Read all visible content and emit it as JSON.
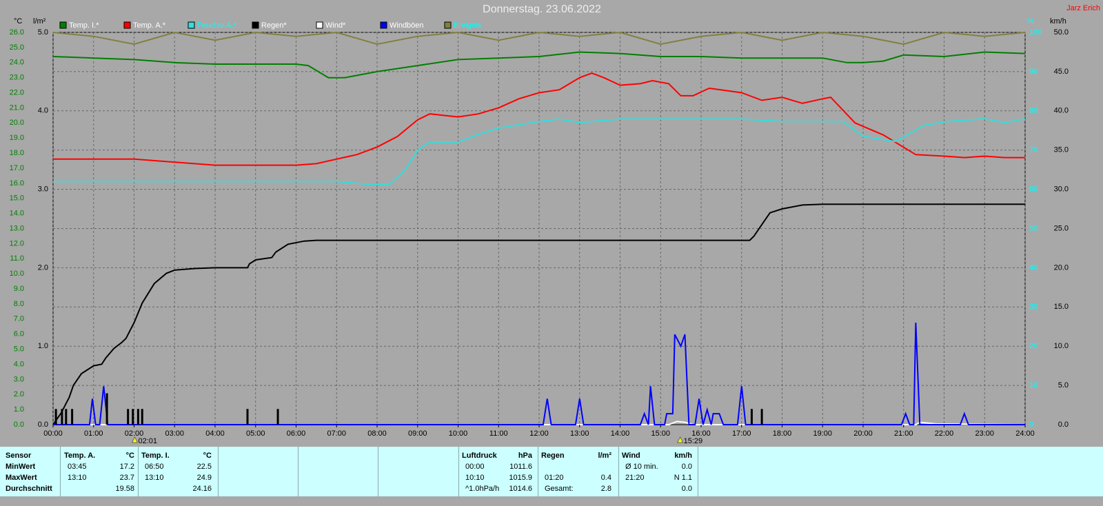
{
  "chart_data": {
    "type": "line",
    "title": "Donnerstag. 23.06.2022",
    "author": "Jarz Erich",
    "axis_labels": {
      "y": "°C",
      "y2": "l/m²",
      "y3": "%",
      "y4": "km/h"
    },
    "xlim": [
      0,
      24
    ],
    "xticks": [
      {
        "value": 0,
        "label": "00:00"
      },
      {
        "value": 1,
        "label": "01:00"
      },
      {
        "value": 2,
        "label": "02:00"
      },
      {
        "value": 3,
        "label": "03:00"
      },
      {
        "value": 4,
        "label": "04:00"
      },
      {
        "value": 5,
        "label": "05:00"
      },
      {
        "value": 6,
        "label": "06:00"
      },
      {
        "value": 7,
        "label": "07:00"
      },
      {
        "value": 8,
        "label": "08:00"
      },
      {
        "value": 9,
        "label": "09:00"
      },
      {
        "value": 10,
        "label": "10:00"
      },
      {
        "value": 11,
        "label": "11:00"
      },
      {
        "value": 12,
        "label": "12:00"
      },
      {
        "value": 13,
        "label": "13:00"
      },
      {
        "value": 14,
        "label": "14:00"
      },
      {
        "value": 15,
        "label": "15:00"
      },
      {
        "value": 16,
        "label": "16:00"
      },
      {
        "value": 17,
        "label": "17:00"
      },
      {
        "value": 18,
        "label": "18:00"
      },
      {
        "value": 19,
        "label": "19:00"
      },
      {
        "value": 20,
        "label": "20:00"
      },
      {
        "value": 21,
        "label": "21:00"
      },
      {
        "value": 22,
        "label": "22:00"
      },
      {
        "value": 23,
        "label": "23:00"
      },
      {
        "value": 24,
        "label": "24:00"
      }
    ],
    "ylim": [
      0,
      26
    ],
    "yticks": [
      {
        "value": 0,
        "label": "0.0"
      },
      {
        "value": 1,
        "label": "1.0"
      },
      {
        "value": 2,
        "label": "2.0"
      },
      {
        "value": 3,
        "label": "3.0"
      },
      {
        "value": 4,
        "label": "4.0"
      },
      {
        "value": 5,
        "label": "5.0"
      },
      {
        "value": 6,
        "label": "6.0"
      },
      {
        "value": 7,
        "label": "7.0"
      },
      {
        "value": 8,
        "label": "8.0"
      },
      {
        "value": 9,
        "label": "9.0"
      },
      {
        "value": 10,
        "label": "10.0"
      },
      {
        "value": 11,
        "label": "11.0"
      },
      {
        "value": 12,
        "label": "12.0"
      },
      {
        "value": 13,
        "label": "13.0"
      },
      {
        "value": 14,
        "label": "14.0"
      },
      {
        "value": 15,
        "label": "15.0"
      },
      {
        "value": 16,
        "label": "16.0"
      },
      {
        "value": 17,
        "label": "17.0"
      },
      {
        "value": 18,
        "label": "18.0"
      },
      {
        "value": 19,
        "label": "19.0"
      },
      {
        "value": 20,
        "label": "20.0"
      },
      {
        "value": 21,
        "label": "21.0"
      },
      {
        "value": 22,
        "label": "22.0"
      },
      {
        "value": 23,
        "label": "23.0"
      },
      {
        "value": 24,
        "label": "24.0"
      },
      {
        "value": 25,
        "label": "25.0"
      },
      {
        "value": 26,
        "label": "26.0"
      }
    ],
    "y2lim": [
      0,
      5
    ],
    "y2ticks": [
      {
        "value": 0,
        "label": "0.0"
      },
      {
        "value": 1,
        "label": "1.0"
      },
      {
        "value": 2,
        "label": "2.0"
      },
      {
        "value": 3,
        "label": "3.0"
      },
      {
        "value": 4,
        "label": "4.0"
      },
      {
        "value": 5,
        "label": "5.0"
      }
    ],
    "y3lim": [
      0,
      100
    ],
    "y3ticks": [
      0,
      10,
      20,
      30,
      40,
      50,
      60,
      70,
      80,
      90,
      100
    ],
    "y4lim": [
      0,
      50
    ],
    "y4ticks": [
      {
        "value": 0,
        "label": "0.0"
      },
      {
        "value": 5,
        "label": "5.0"
      },
      {
        "value": 10,
        "label": "10.0"
      },
      {
        "value": 15,
        "label": "15.0"
      },
      {
        "value": 20,
        "label": "20.0"
      },
      {
        "value": 25,
        "label": "25.0"
      },
      {
        "value": 30,
        "label": "30.0"
      },
      {
        "value": 35,
        "label": "35.0"
      },
      {
        "value": 40,
        "label": "40.0"
      },
      {
        "value": 45,
        "label": "45.0"
      },
      {
        "value": 50,
        "label": "50.0"
      }
    ],
    "grid": true,
    "series": [
      {
        "name": "Temp. I.*",
        "color": "#007f00",
        "axis": "y",
        "x": [
          0,
          1,
          2,
          3,
          4,
          5,
          6,
          6.3,
          6.8,
          7.2,
          8,
          9,
          10,
          11,
          12,
          13,
          14,
          15,
          16,
          17,
          18,
          19,
          19.6,
          20,
          20.5,
          21,
          22,
          23,
          24
        ],
        "values": [
          24.4,
          24.3,
          24.2,
          24.0,
          23.9,
          23.9,
          23.9,
          23.8,
          23.0,
          23.0,
          23.4,
          23.8,
          24.2,
          24.3,
          24.4,
          24.7,
          24.6,
          24.4,
          24.4,
          24.3,
          24.3,
          24.3,
          24.0,
          24.0,
          24.1,
          24.5,
          24.4,
          24.7,
          24.6
        ]
      },
      {
        "name": "Temp. A.*",
        "color": "#ff0000",
        "axis": "y",
        "x": [
          0,
          1,
          2,
          3,
          4,
          5,
          6,
          6.5,
          7,
          7.5,
          8,
          8.5,
          9,
          9.3,
          10,
          10.5,
          11,
          11.5,
          12,
          12.5,
          13,
          13.3,
          13.6,
          14,
          14.5,
          14.8,
          15.2,
          15.5,
          15.8,
          16.2,
          17,
          17.5,
          18,
          18.5,
          19,
          19.2,
          19.8,
          20.5,
          21.3,
          22,
          22.5,
          23,
          23.5,
          24
        ],
        "values": [
          17.6,
          17.6,
          17.6,
          17.4,
          17.2,
          17.2,
          17.2,
          17.3,
          17.6,
          17.9,
          18.4,
          19.1,
          20.2,
          20.6,
          20.4,
          20.6,
          21.0,
          21.6,
          22.0,
          22.2,
          23.0,
          23.3,
          23.0,
          22.5,
          22.6,
          22.8,
          22.6,
          21.8,
          21.8,
          22.3,
          22.0,
          21.5,
          21.7,
          21.3,
          21.6,
          21.7,
          20.0,
          19.2,
          17.9,
          17.8,
          17.7,
          17.8,
          17.7,
          17.7
        ]
      },
      {
        "name": "Feuchte A.*",
        "color": "#33dddd",
        "axis": "y3",
        "legend_color": "#00ffff",
        "x": [
          0,
          2,
          4,
          6,
          7,
          7.5,
          8,
          8.3,
          8.7,
          9,
          9.3,
          10,
          10.5,
          11,
          12,
          12.5,
          13,
          14,
          15,
          16,
          17,
          18,
          19,
          19.5,
          20,
          20.8,
          21.5,
          22,
          23,
          23.5,
          24
        ],
        "values": [
          62,
          62,
          62,
          62,
          62,
          61.5,
          61.2,
          61.2,
          65,
          70,
          72,
          72,
          74,
          75.6,
          77.3,
          77.9,
          77,
          77.9,
          77.9,
          77.9,
          77.9,
          77.3,
          77.3,
          77.3,
          73.5,
          72.2,
          76.3,
          77.2,
          78,
          77,
          78
        ]
      },
      {
        "name": "Regen*",
        "color": "#000000",
        "axis": "y2",
        "x": [
          0,
          0.2,
          0.4,
          0.5,
          0.7,
          1.0,
          1.2,
          1.3,
          1.5,
          1.7,
          1.8,
          2.0,
          2.2,
          2.5,
          2.8,
          3.0,
          3.5,
          4.0,
          4.8,
          4.85,
          5.0,
          5.4,
          5.5,
          5.8,
          6.2,
          6.5,
          17.2,
          17.3,
          17.5,
          17.7,
          18.0,
          18.5,
          19.0,
          24
        ],
        "values": [
          0,
          0.15,
          0.35,
          0.5,
          0.65,
          0.75,
          0.77,
          0.85,
          0.97,
          1.05,
          1.1,
          1.3,
          1.55,
          1.8,
          1.93,
          1.97,
          1.99,
          2.0,
          2.0,
          2.05,
          2.1,
          2.13,
          2.2,
          2.3,
          2.34,
          2.35,
          2.35,
          2.4,
          2.55,
          2.7,
          2.75,
          2.8,
          2.81,
          2.81
        ]
      },
      {
        "name": "Wind*",
        "color": "#ffffff",
        "axis": "y4",
        "x": [
          0,
          15.2,
          15.4,
          15.6,
          15.8,
          21.3,
          21.4,
          21.8,
          24
        ],
        "values": [
          0,
          0,
          0.4,
          0.3,
          0,
          0,
          0.3,
          0.1,
          0
        ]
      },
      {
        "name": "Windböen",
        "color": "#0000ff",
        "axis": "y4",
        "x": [
          0,
          0.9,
          0.97,
          1.05,
          1.15,
          1.25,
          1.35,
          12.1,
          12.2,
          12.3,
          12.9,
          13.0,
          13.1,
          14.5,
          14.6,
          14.7,
          14.75,
          14.85,
          15.1,
          15.15,
          15.3,
          15.35,
          15.5,
          15.6,
          15.7,
          15.85,
          15.95,
          16.05,
          16.15,
          16.25,
          16.3,
          16.45,
          16.55,
          16.9,
          17.0,
          17.1,
          20.95,
          21.05,
          21.15,
          21.25,
          21.3,
          21.4,
          22.4,
          22.5,
          22.6,
          24
        ],
        "values": [
          0,
          0,
          3.3,
          0,
          0,
          4.9,
          0,
          0,
          3.3,
          0,
          0,
          3.3,
          0,
          0,
          1.4,
          0,
          4.9,
          0,
          0,
          1.4,
          1.4,
          11.5,
          10,
          11.5,
          0,
          0,
          3.3,
          0,
          1.9,
          0,
          1.4,
          1.4,
          0,
          0,
          4.9,
          0,
          0,
          1.4,
          0,
          0,
          13,
          0,
          0,
          1.4,
          0,
          0
        ]
      },
      {
        "name": "Ereignis",
        "color": "#808040",
        "axis": "y3",
        "legend_color": "#00ffff",
        "x": [
          0,
          1,
          2,
          3,
          4,
          5,
          6,
          7,
          8,
          9,
          10,
          11,
          12,
          13,
          14,
          15,
          16,
          17,
          18,
          19,
          20,
          21,
          22,
          23,
          24
        ],
        "values": [
          100,
          99,
          97,
          100,
          98,
          100,
          99,
          100,
          97,
          99,
          100,
          98,
          100,
          99,
          100,
          97,
          99,
          100,
          98,
          100,
          99,
          97,
          100,
          99,
          100
        ]
      },
      {
        "type": "bar",
        "color": "#000000",
        "axis": "y2",
        "x": [
          0.07,
          0.22,
          0.32,
          0.47,
          1.33,
          1.85,
          1.97,
          2.1,
          2.2,
          4.8,
          5.55,
          17.25,
          17.5
        ],
        "values": [
          0.2,
          0.2,
          0.2,
          0.2,
          0.4,
          0.2,
          0.2,
          0.2,
          0.2,
          0.2,
          0.2,
          0.2,
          0.2
        ]
      }
    ],
    "annotations": [
      {
        "x": 2.0167,
        "text": "02:01"
      },
      {
        "x": 15.4833,
        "text": "15:29"
      }
    ]
  },
  "stats": {
    "row_labels": [
      "Sensor",
      "MinWert",
      "MaxWert",
      "Durchschnitt"
    ],
    "blocks": [
      {
        "title": "Temp. A.",
        "unit": "°C",
        "rows": [
          [
            "03:45",
            "17.2"
          ],
          [
            "13:10",
            "23.7"
          ],
          [
            null,
            "19.58"
          ]
        ]
      },
      {
        "title": "Temp. I.",
        "unit": "°C",
        "rows": [
          [
            "06:50",
            "22.5"
          ],
          [
            "13:10",
            "24.9"
          ],
          [
            null,
            "24.16"
          ]
        ]
      },
      {
        "title": "Luftdruck",
        "unit": "hPa",
        "rows": [
          [
            "00:00",
            "1011.6"
          ],
          [
            "10:10",
            "1015.9"
          ],
          [
            "^1.0hPa/h",
            "1014.6"
          ]
        ]
      },
      {
        "title": "Regen",
        "unit": "l/m²",
        "rows": [
          [
            null,
            null
          ],
          [
            "01:20",
            "0.4"
          ],
          [
            "Gesamt:",
            "2.8"
          ]
        ]
      },
      {
        "title": "Wind",
        "unit": "km/h",
        "rows": [
          [
            "Ø 10 min.",
            "0.0"
          ],
          [
            "21:20",
            "N 1.1"
          ],
          [
            null,
            "0.0"
          ]
        ]
      }
    ]
  }
}
